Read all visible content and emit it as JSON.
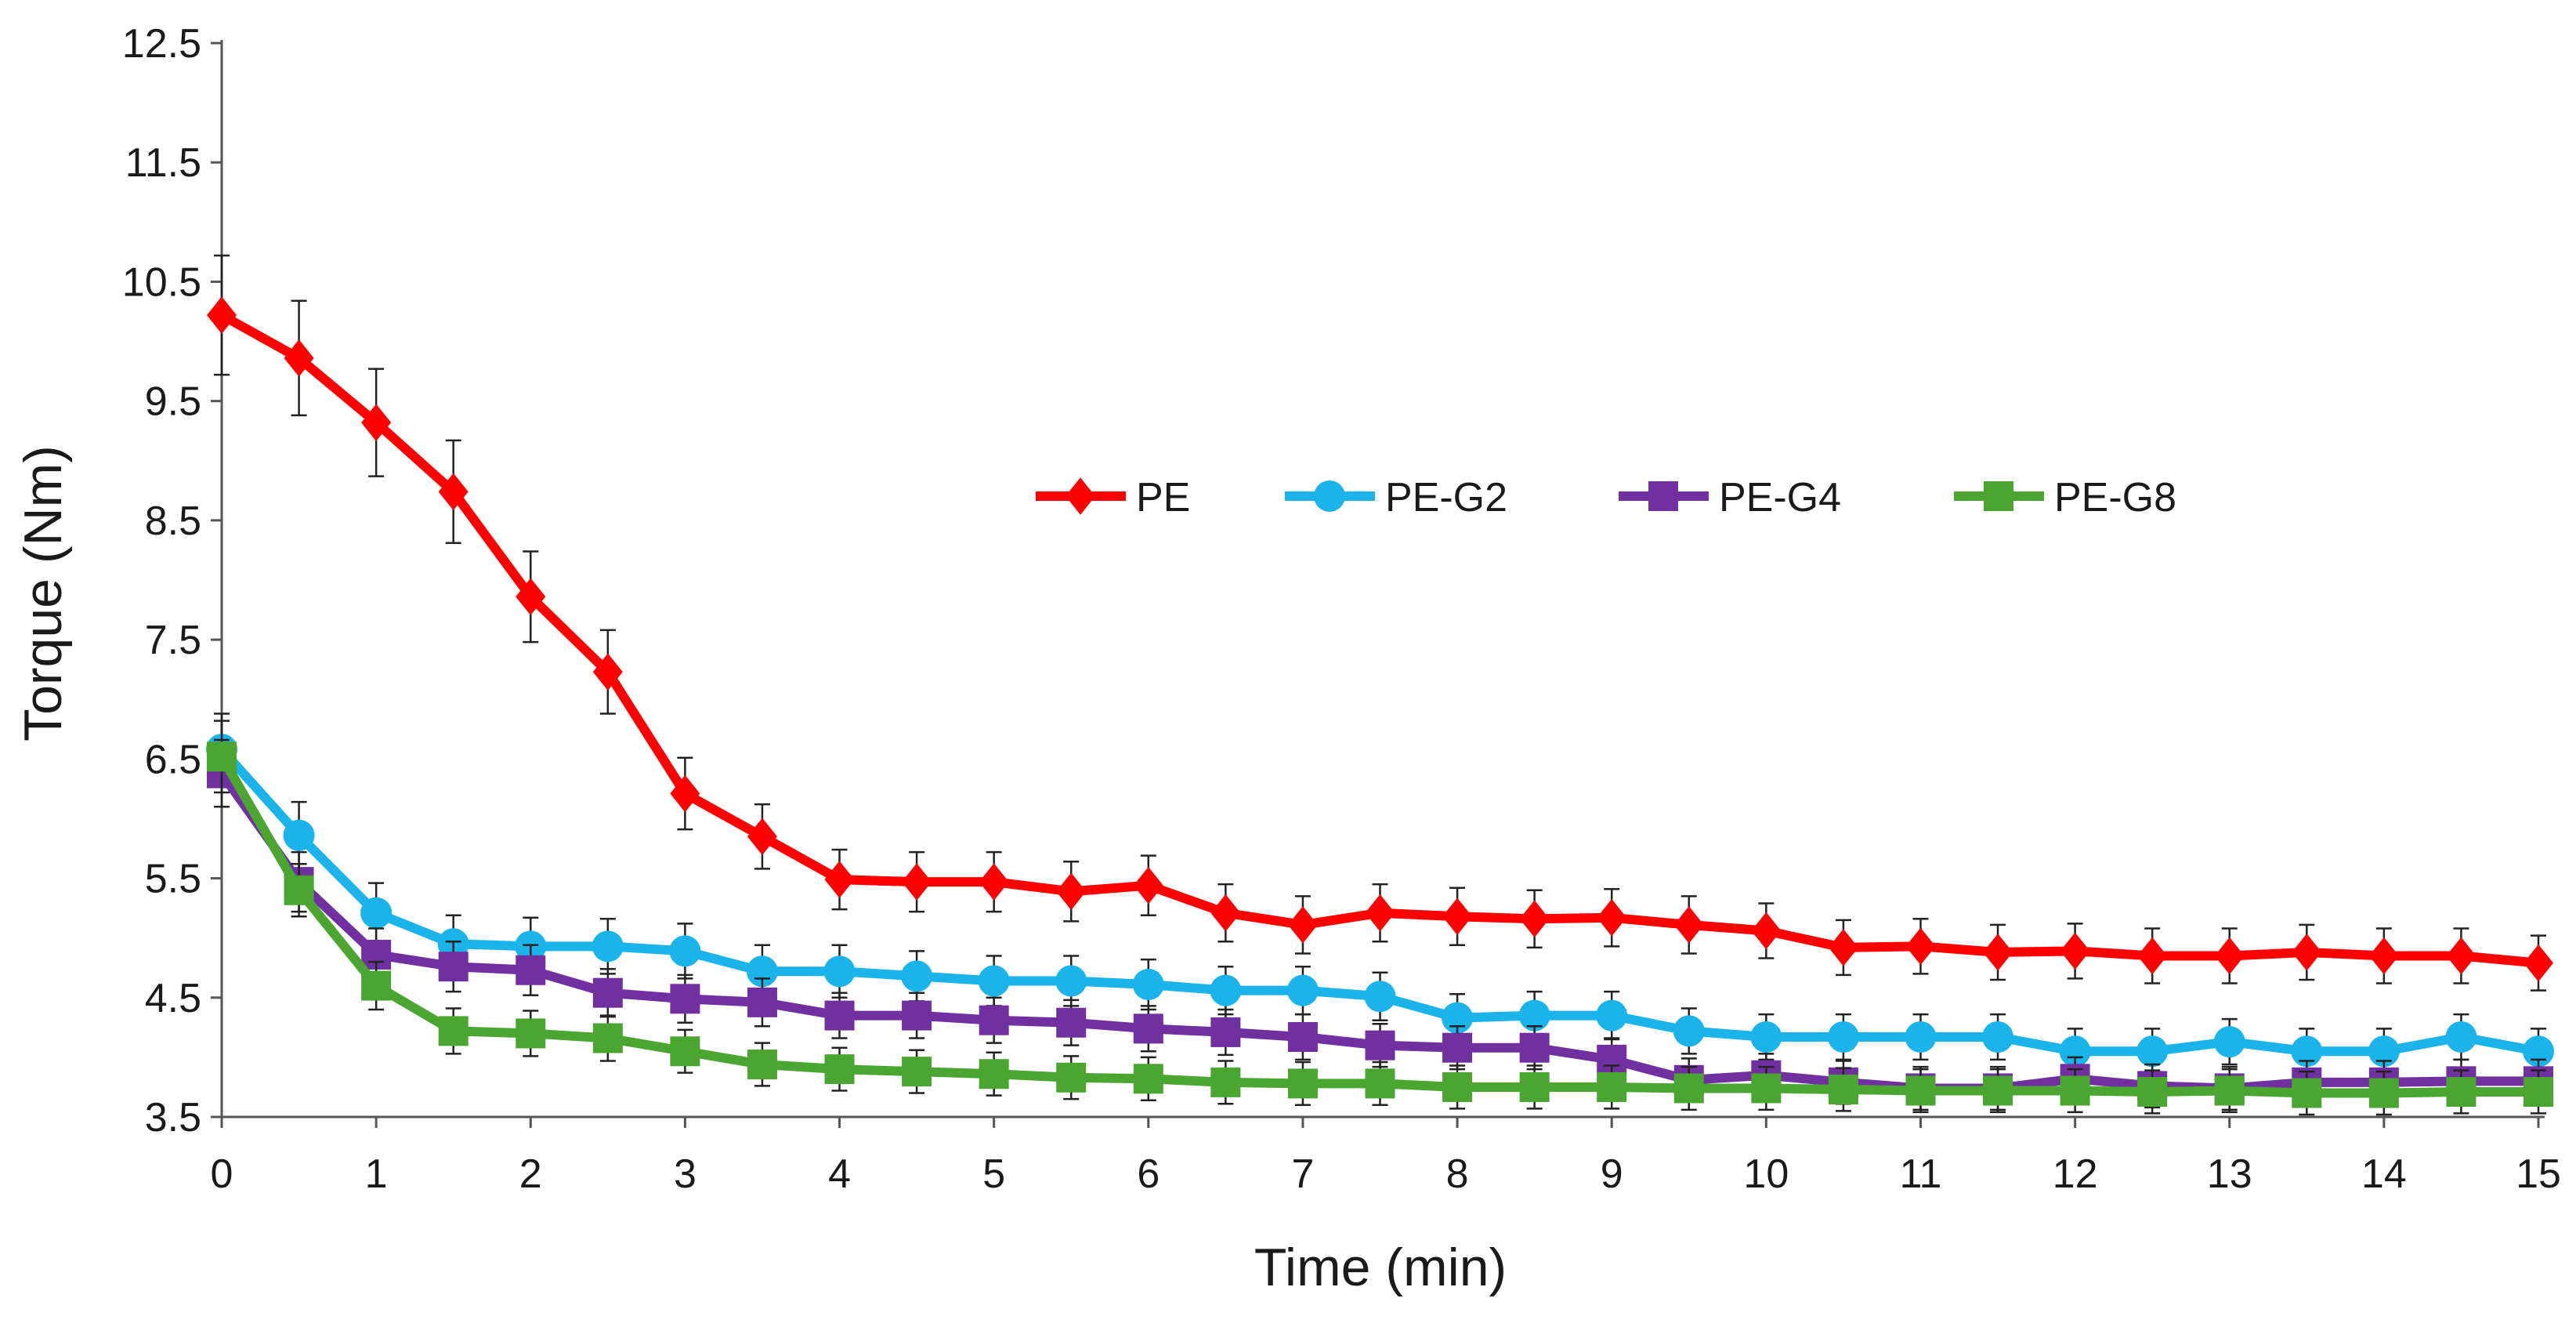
{
  "chart_data": {
    "type": "line",
    "title": "",
    "xlabel": "Time (min)",
    "ylabel": "Torque (Nm)",
    "xlim": [
      0,
      15
    ],
    "ylim": [
      3.5,
      12.5
    ],
    "xticks": [
      0,
      1,
      2,
      3,
      4,
      5,
      6,
      7,
      8,
      9,
      10,
      11,
      12,
      13,
      14,
      15
    ],
    "yticks": [
      3.5,
      4.5,
      5.5,
      6.5,
      7.5,
      8.5,
      9.5,
      10.5,
      11.5,
      12.5
    ],
    "ytick_labels": [
      "3.5",
      "4.5",
      "5.5",
      "6.5",
      "7.5",
      "8.5",
      "9.5",
      "10.5",
      "11.5",
      "12.5"
    ],
    "grid": false,
    "legend_position": "upper-middle",
    "x": [
      0,
      0.5,
      1,
      1.5,
      2,
      2.5,
      3,
      3.5,
      4,
      4.5,
      5,
      5.5,
      6,
      6.5,
      7,
      7.5,
      8,
      8.5,
      9,
      9.5,
      10,
      10.5,
      11,
      11.5,
      12,
      12.5,
      13,
      13.5,
      14,
      14.5,
      15
    ],
    "series": [
      {
        "name": "PE",
        "color": "#ff0000",
        "marker": "diamond",
        "values": [
          10.22,
          9.86,
          9.32,
          8.74,
          7.86,
          7.23,
          6.21,
          5.85,
          5.49,
          5.47,
          5.47,
          5.39,
          5.44,
          5.21,
          5.11,
          5.21,
          5.18,
          5.16,
          5.17,
          5.11,
          5.06,
          4.92,
          4.93,
          4.88,
          4.89,
          4.85,
          4.85,
          4.88,
          4.85,
          4.85,
          4.79
        ],
        "errors": [
          0.5,
          0.48,
          0.45,
          0.43,
          0.38,
          0.35,
          0.3,
          0.27,
          0.25,
          0.25,
          0.25,
          0.25,
          0.25,
          0.24,
          0.24,
          0.24,
          0.24,
          0.24,
          0.24,
          0.24,
          0.23,
          0.23,
          0.23,
          0.23,
          0.23,
          0.23,
          0.23,
          0.23,
          0.23,
          0.23,
          0.23
        ]
      },
      {
        "name": "PE-G2",
        "color": "#1ab3ea",
        "marker": "circle",
        "values": [
          6.58,
          5.86,
          5.21,
          4.95,
          4.93,
          4.93,
          4.89,
          4.72,
          4.72,
          4.68,
          4.64,
          4.64,
          4.61,
          4.56,
          4.56,
          4.51,
          4.33,
          4.35,
          4.35,
          4.22,
          4.17,
          4.17,
          4.17,
          4.17,
          4.05,
          4.05,
          4.13,
          4.05,
          4.05,
          4.17,
          4.05
        ],
        "errors": [
          0.3,
          0.28,
          0.25,
          0.24,
          0.24,
          0.23,
          0.23,
          0.22,
          0.22,
          0.21,
          0.21,
          0.21,
          0.21,
          0.2,
          0.2,
          0.2,
          0.2,
          0.2,
          0.2,
          0.19,
          0.19,
          0.19,
          0.19,
          0.19,
          0.19,
          0.19,
          0.19,
          0.19,
          0.19,
          0.19,
          0.19
        ]
      },
      {
        "name": "PE-G4",
        "color": "#7030a0",
        "marker": "square",
        "values": [
          6.38,
          5.47,
          4.86,
          4.76,
          4.73,
          4.54,
          4.49,
          4.46,
          4.35,
          4.35,
          4.31,
          4.29,
          4.24,
          4.21,
          4.17,
          4.1,
          4.08,
          4.08,
          3.98,
          3.81,
          3.85,
          3.79,
          3.74,
          3.74,
          3.82,
          3.76,
          3.74,
          3.79,
          3.79,
          3.8,
          3.8
        ],
        "errors": [
          0.28,
          0.25,
          0.22,
          0.21,
          0.21,
          0.2,
          0.2,
          0.2,
          0.19,
          0.19,
          0.19,
          0.19,
          0.19,
          0.19,
          0.19,
          0.18,
          0.18,
          0.18,
          0.18,
          0.18,
          0.18,
          0.18,
          0.18,
          0.18,
          0.18,
          0.18,
          0.18,
          0.18,
          0.18,
          0.18,
          0.18
        ]
      },
      {
        "name": "PE-G8",
        "color": "#4aa631",
        "marker": "square",
        "values": [
          6.52,
          5.4,
          4.6,
          4.22,
          4.2,
          4.16,
          4.05,
          3.94,
          3.9,
          3.88,
          3.86,
          3.83,
          3.82,
          3.79,
          3.78,
          3.78,
          3.75,
          3.75,
          3.75,
          3.74,
          3.74,
          3.73,
          3.72,
          3.72,
          3.72,
          3.71,
          3.72,
          3.7,
          3.7,
          3.71,
          3.71
        ],
        "errors": [
          0.3,
          0.22,
          0.2,
          0.19,
          0.19,
          0.19,
          0.18,
          0.18,
          0.18,
          0.18,
          0.18,
          0.18,
          0.18,
          0.18,
          0.18,
          0.18,
          0.18,
          0.18,
          0.18,
          0.18,
          0.18,
          0.18,
          0.18,
          0.18,
          0.18,
          0.18,
          0.18,
          0.18,
          0.18,
          0.18,
          0.18
        ]
      }
    ]
  }
}
